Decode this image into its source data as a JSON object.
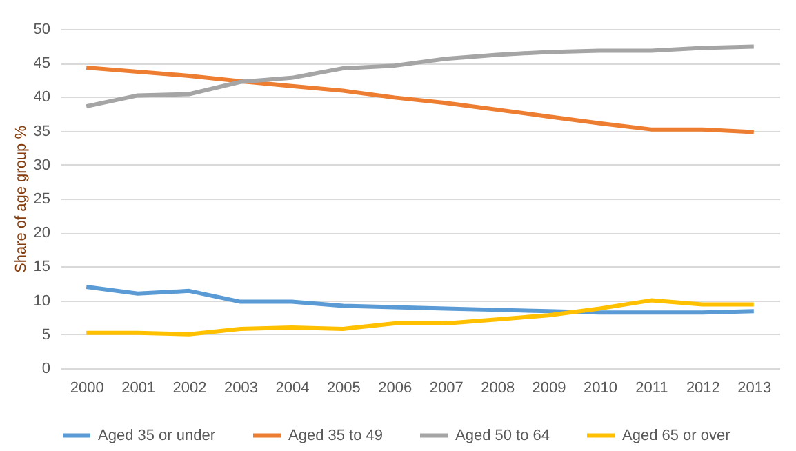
{
  "chart_data": {
    "type": "line",
    "ylabel": "Share of age group %",
    "categories": [
      "2000",
      "2001",
      "2002",
      "2003",
      "2004",
      "2005",
      "2006",
      "2007",
      "2008",
      "2009",
      "2010",
      "2011",
      "2012",
      "2013"
    ],
    "series": [
      {
        "name": "Aged 35 or under",
        "color": "#5b9bd5",
        "values": [
          12,
          11,
          11.4,
          9.8,
          9.8,
          9.2,
          9,
          8.8,
          8.6,
          8.4,
          8.2,
          8.2,
          8.2,
          8.4
        ]
      },
      {
        "name": "Aged 35 to 49",
        "color": "#ed7d31",
        "values": [
          44.3,
          43.7,
          43.1,
          42.3,
          41.6,
          40.9,
          39.9,
          39.1,
          38.1,
          37.1,
          36.1,
          35.2,
          35.2,
          34.8
        ]
      },
      {
        "name": "Aged 50 to 64",
        "color": "#a5a5a5",
        "values": [
          38.6,
          40.2,
          40.4,
          42.2,
          42.8,
          44.2,
          44.6,
          45.6,
          46.2,
          46.6,
          46.8,
          46.8,
          47.2,
          47.4
        ]
      },
      {
        "name": "Aged 65 or over",
        "color": "#ffc000",
        "values": [
          5.2,
          5.2,
          5.0,
          5.8,
          6.0,
          5.8,
          6.6,
          6.6,
          7.2,
          7.8,
          8.8,
          10,
          9.4,
          9.4
        ]
      }
    ],
    "ylim": [
      0,
      50
    ],
    "yticks": [
      0,
      5,
      10,
      15,
      20,
      25,
      30,
      35,
      40,
      45,
      50
    ],
    "grid": "y",
    "legend": "bottom"
  }
}
